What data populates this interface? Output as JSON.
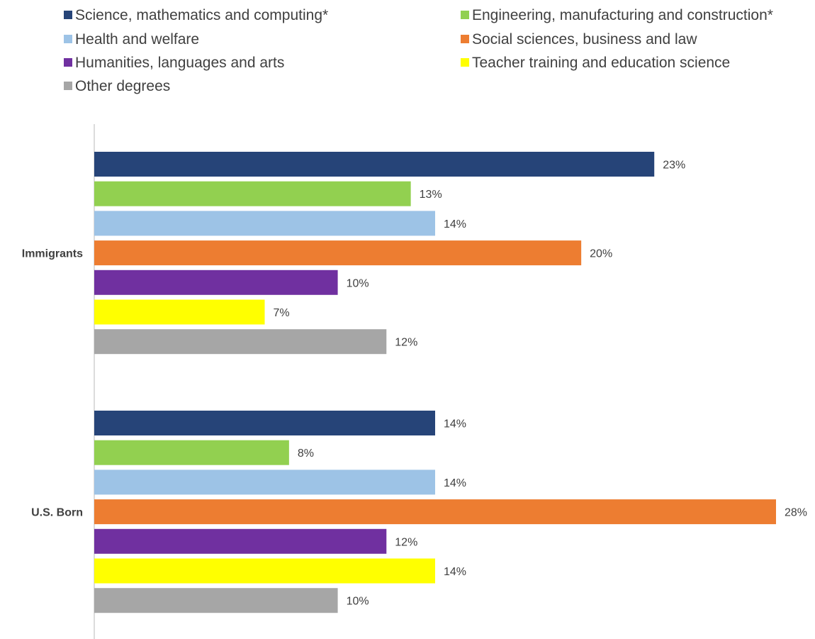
{
  "chart_data": {
    "type": "bar",
    "orientation": "horizontal",
    "categories": [
      "Immigrants",
      "U.S. Born"
    ],
    "series": [
      {
        "name": "Science, mathematics and computing*",
        "color": "#264478",
        "values": [
          23,
          14
        ],
        "labels": [
          "23%",
          "14%"
        ]
      },
      {
        "name": "Engineering, manufacturing and construction*",
        "color": "#92D050",
        "values": [
          13,
          8
        ],
        "labels": [
          "13%",
          "8%"
        ]
      },
      {
        "name": "Health and welfare",
        "color": "#9DC3E6",
        "values": [
          14,
          14
        ],
        "labels": [
          "14%",
          "14%"
        ]
      },
      {
        "name": "Social sciences, business and law",
        "color": "#ED7D31",
        "values": [
          20,
          28
        ],
        "labels": [
          "20%",
          "28%"
        ]
      },
      {
        "name": "Humanities, languages and arts",
        "color": "#7030A0",
        "values": [
          10,
          12
        ],
        "labels": [
          "10%",
          "12%"
        ]
      },
      {
        "name": "Teacher training and education science",
        "color": "#FFFF00",
        "values": [
          7,
          14
        ],
        "labels": [
          "7%",
          "14%"
        ]
      },
      {
        "name": "Other degrees",
        "color": "#A6A6A6",
        "values": [
          12,
          10
        ],
        "labels": [
          "12%",
          "10%"
        ]
      }
    ],
    "xlim": [
      0,
      28
    ],
    "grid": false,
    "legend_position": "top",
    "title": "",
    "xlabel": "",
    "ylabel": ""
  }
}
